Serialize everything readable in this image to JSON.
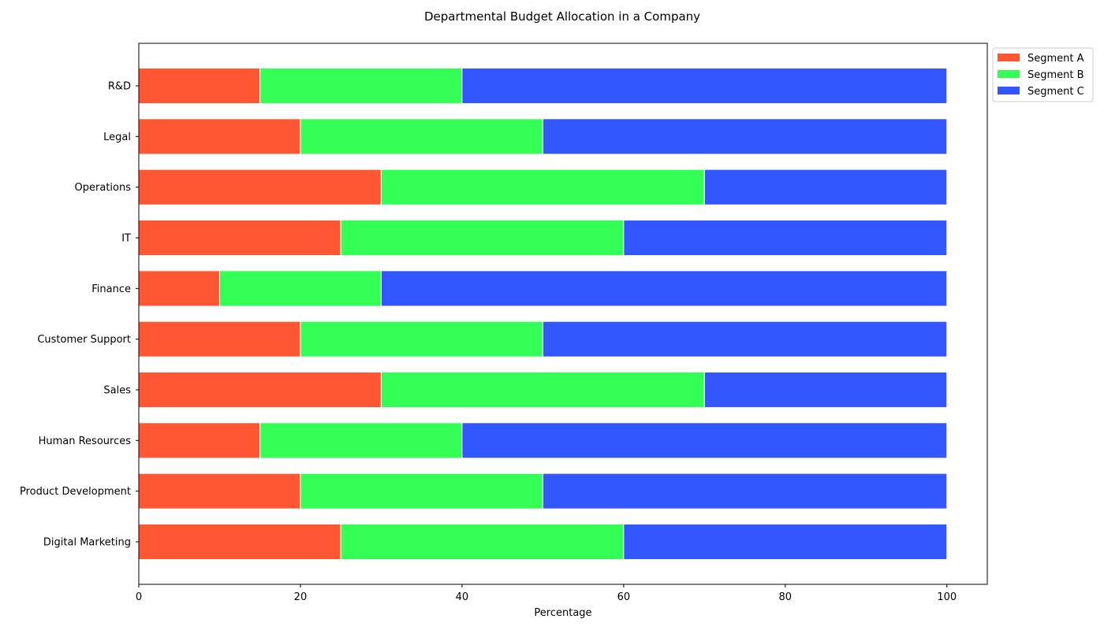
{
  "chart_data": {
    "type": "bar",
    "orientation": "horizontal",
    "stacked": true,
    "title": "Departmental Budget Allocation in a Company",
    "xlabel": "Percentage",
    "ylabel": "",
    "xlim": [
      0,
      105
    ],
    "xticks": [
      0,
      20,
      40,
      60,
      80,
      100
    ],
    "grid": false,
    "legend_position": "top-right outside",
    "categories": [
      "Digital Marketing",
      "Product Development",
      "Human Resources",
      "Sales",
      "Customer Support",
      "Finance",
      "IT",
      "Operations",
      "Legal",
      "R&D"
    ],
    "series": [
      {
        "name": "Segment A",
        "color": "#FF5733",
        "values": [
          25,
          20,
          15,
          30,
          20,
          10,
          25,
          30,
          20,
          15
        ]
      },
      {
        "name": "Segment B",
        "color": "#33FF57",
        "values": [
          35,
          30,
          25,
          40,
          30,
          20,
          35,
          40,
          30,
          25
        ]
      },
      {
        "name": "Segment C",
        "color": "#3357FF",
        "values": [
          40,
          50,
          60,
          30,
          50,
          70,
          40,
          30,
          50,
          60
        ]
      }
    ]
  }
}
